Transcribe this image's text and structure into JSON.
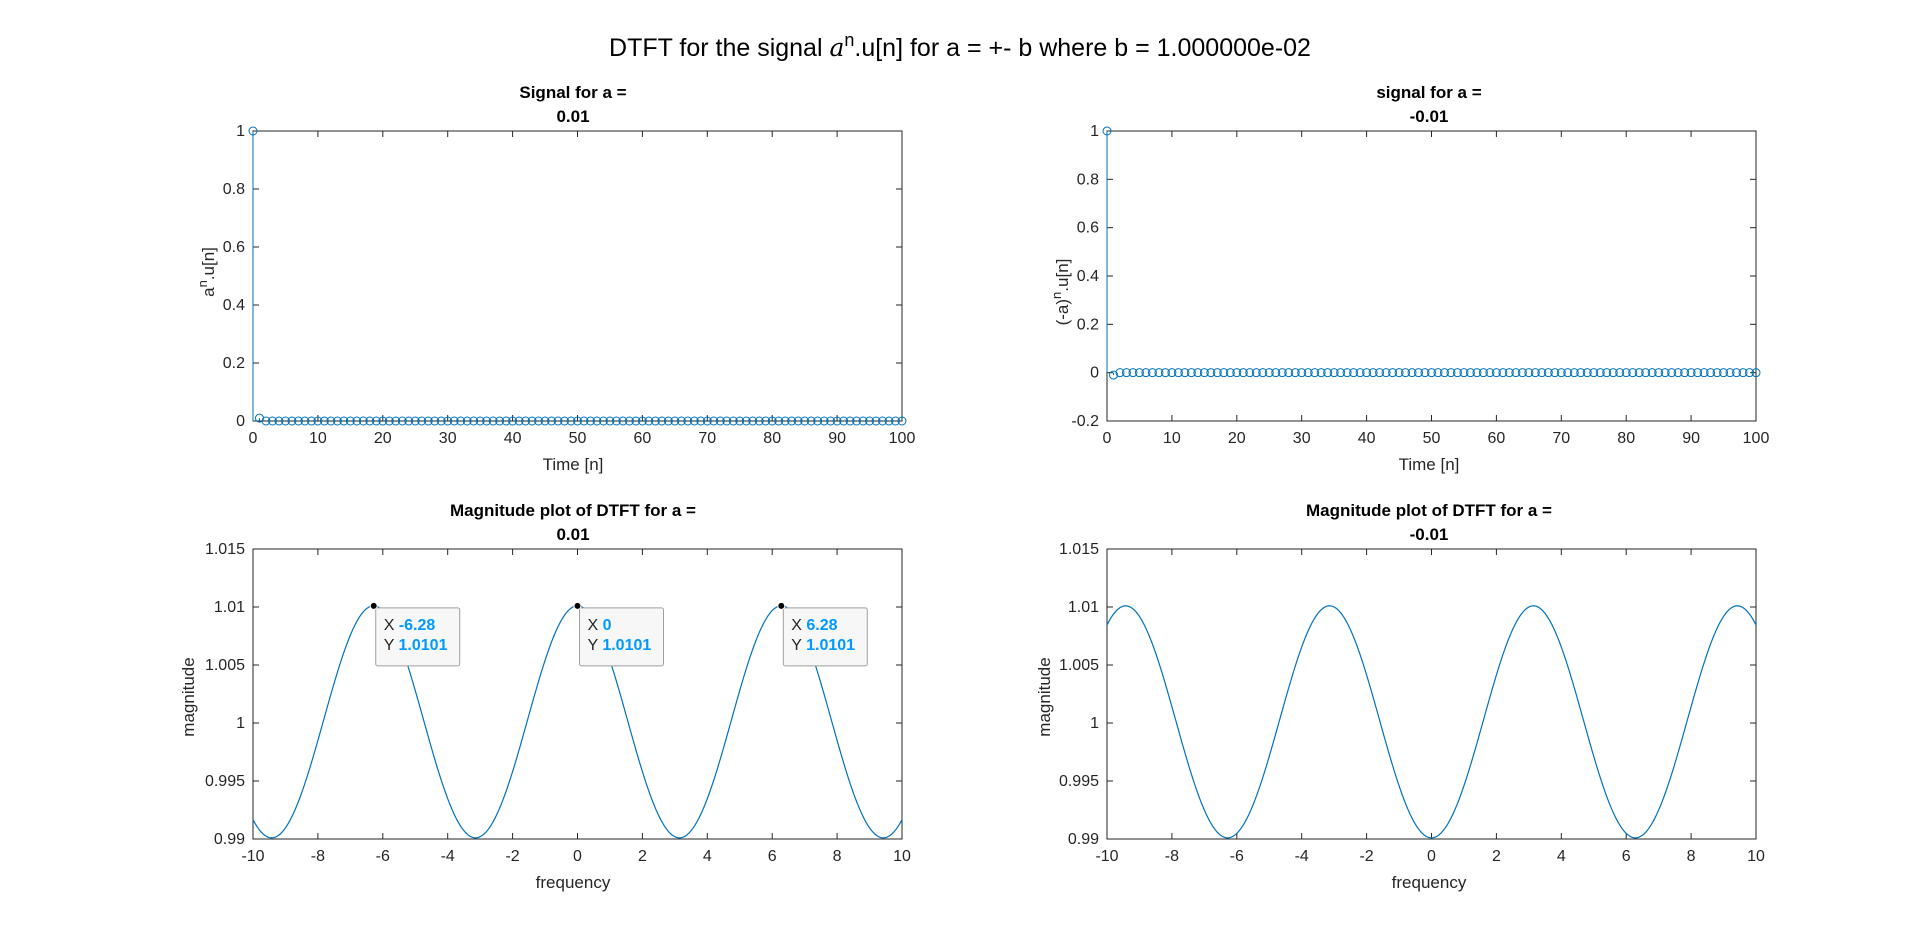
{
  "figure": {
    "title_prefix": "DTFT for the signal ",
    "title_base": "a",
    "title_sup": "n",
    "title_suffix": ".u[n] for a = +- b where b = 1.000000e-02"
  },
  "colors": {
    "line": "#0072BD",
    "axis": "#262626",
    "tip_value": "#0099FF",
    "marker": "#000000"
  },
  "chart_data": [
    {
      "id": "signal_pos",
      "type": "stem",
      "title": [
        "Signal for a =",
        "0.01"
      ],
      "xlabel": "Time [n]",
      "ylabel_base": "a",
      "ylabel_sup": "n",
      "ylabel_suffix": ".u[n]",
      "a": 0.01,
      "n_range": [
        0,
        100
      ],
      "xlim": [
        0,
        100
      ],
      "ylim": [
        0,
        1
      ],
      "xticks": [
        0,
        10,
        20,
        30,
        40,
        50,
        60,
        70,
        80,
        90,
        100
      ],
      "yticks": [
        0,
        0.2,
        0.4,
        0.6,
        0.8,
        1
      ],
      "xtick_labels": [
        "0",
        "10",
        "20",
        "30",
        "40",
        "50",
        "60",
        "70",
        "80",
        "90",
        "100"
      ],
      "ytick_labels": [
        "0",
        "0.2",
        "0.4",
        "0.6",
        "0.8",
        "1"
      ],
      "grid": false,
      "series": [
        {
          "x_start": 0,
          "x_end": 100,
          "formula": "0.01^n",
          "values_first": [
            1,
            0.01,
            0.0001,
            1e-06
          ]
        }
      ]
    },
    {
      "id": "signal_neg",
      "type": "stem",
      "title": [
        "signal for a =",
        "-0.01"
      ],
      "xlabel": "Time [n]",
      "ylabel_base": "(-a)",
      "ylabel_sup": "n",
      "ylabel_suffix": ".u[n]",
      "a": -0.01,
      "n_range": [
        0,
        100
      ],
      "xlim": [
        0,
        100
      ],
      "ylim": [
        -0.2,
        1
      ],
      "xticks": [
        0,
        10,
        20,
        30,
        40,
        50,
        60,
        70,
        80,
        90,
        100
      ],
      "yticks": [
        -0.2,
        0,
        0.2,
        0.4,
        0.6,
        0.8,
        1
      ],
      "xtick_labels": [
        "0",
        "10",
        "20",
        "30",
        "40",
        "50",
        "60",
        "70",
        "80",
        "90",
        "100"
      ],
      "ytick_labels": [
        "-0.2",
        "0",
        "0.2",
        "0.4",
        "0.6",
        "0.8",
        "1"
      ],
      "grid": false,
      "series": [
        {
          "x_start": 0,
          "x_end": 100,
          "formula": "(-0.01)^n",
          "values_first": [
            1,
            -0.01,
            0.0001,
            -1e-06
          ]
        }
      ]
    },
    {
      "id": "mag_pos",
      "type": "line",
      "title": [
        "Magnitude plot of DTFT for a =",
        "0.01"
      ],
      "xlabel": "frequency",
      "ylabel": "magnitude",
      "a": 0.01,
      "formula": "1/sqrt(1 - 2a cos(w) + a^2)",
      "xlim": [
        -10,
        10
      ],
      "ylim": [
        0.99,
        1.015
      ],
      "xticks": [
        -10,
        -8,
        -6,
        -4,
        -2,
        0,
        2,
        4,
        6,
        8,
        10
      ],
      "yticks": [
        0.99,
        0.995,
        1,
        1.005,
        1.01,
        1.015
      ],
      "xtick_labels": [
        "-10",
        "-8",
        "-6",
        "-4",
        "-2",
        "0",
        "2",
        "4",
        "6",
        "8",
        "10"
      ],
      "ytick_labels": [
        "0.99",
        "0.995",
        "1",
        "1.005",
        "1.01",
        "1.015"
      ],
      "grid": false,
      "datatips": [
        {
          "x": -6.28,
          "y": 1.0101,
          "x_text": "-6.28",
          "y_text": "1.0101"
        },
        {
          "x": 0,
          "y": 1.0101,
          "x_text": "0",
          "y_text": "1.0101"
        },
        {
          "x": 6.28,
          "y": 1.0101,
          "x_text": "6.28",
          "y_text": "1.0101"
        }
      ]
    },
    {
      "id": "mag_neg",
      "type": "line",
      "title": [
        "Magnitude plot of DTFT for a =",
        "-0.01"
      ],
      "xlabel": "frequency",
      "ylabel": "magnitude",
      "a": -0.01,
      "formula": "1/sqrt(1 - 2a cos(w) + a^2)",
      "xlim": [
        -10,
        10
      ],
      "ylim": [
        0.99,
        1.015
      ],
      "xticks": [
        -10,
        -8,
        -6,
        -4,
        -2,
        0,
        2,
        4,
        6,
        8,
        10
      ],
      "yticks": [
        0.99,
        0.995,
        1,
        1.005,
        1.01,
        1.015
      ],
      "xtick_labels": [
        "-10",
        "-8",
        "-6",
        "-4",
        "-2",
        "0",
        "2",
        "4",
        "6",
        "8",
        "10"
      ],
      "ytick_labels": [
        "0.99",
        "0.995",
        "1",
        "1.005",
        "1.01",
        "1.015"
      ],
      "grid": false,
      "datatips": []
    }
  ],
  "datatip_labels": {
    "x": "X",
    "y": "Y"
  }
}
